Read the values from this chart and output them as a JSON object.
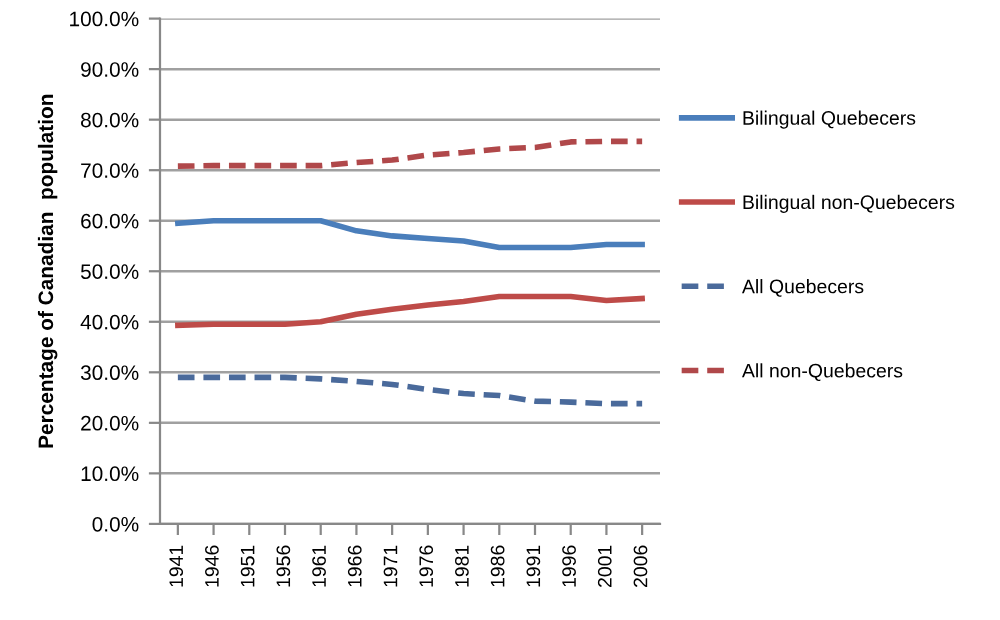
{
  "chart_data": {
    "type": "line",
    "ylabel": "Percentage of Canadian  population",
    "categories": [
      "1941",
      "1946",
      "1951",
      "1956",
      "1961",
      "1966",
      "1971",
      "1976",
      "1981",
      "1986",
      "1991",
      "1996",
      "2001",
      "2006"
    ],
    "series": [
      {
        "name": "Bilingual Quebecers",
        "color": "#4a7ebb",
        "line_style": "solid",
        "values": [
          59.5,
          60,
          60,
          60,
          60,
          58,
          57,
          56.5,
          56,
          54.7,
          54.7,
          54.7,
          55.3,
          55.3
        ]
      },
      {
        "name": "Bilingual non-Quebecers",
        "color": "#be4b48",
        "line_style": "solid",
        "values": [
          39.3,
          39.5,
          39.5,
          39.5,
          40,
          41.5,
          42.5,
          43.3,
          44,
          45,
          45,
          45,
          44.2,
          44.6
        ]
      },
      {
        "name": "All Quebecers",
        "color": "#4a6a9b",
        "line_style": "dashed",
        "values": [
          29,
          29,
          29,
          29,
          28.7,
          28.2,
          27.6,
          26.6,
          25.8,
          25.4,
          24.3,
          24.1,
          23.8,
          23.8
        ]
      },
      {
        "name": "All non-Quebecers",
        "color": "#b0484a",
        "line_style": "dashed",
        "values": [
          70.8,
          70.9,
          70.9,
          70.9,
          70.9,
          71.5,
          72,
          73,
          73.5,
          74.2,
          74.5,
          75.6,
          75.7,
          75.7
        ]
      }
    ],
    "ylim": [
      0,
      100
    ],
    "yticks": [
      {
        "value": 0,
        "label": "0.0%"
      },
      {
        "value": 10,
        "label": "10.0%"
      },
      {
        "value": 20,
        "label": "20.0%"
      },
      {
        "value": 30,
        "label": "30.0%"
      },
      {
        "value": 40,
        "label": "40.0%"
      },
      {
        "value": 50,
        "label": "50.0%"
      },
      {
        "value": 60,
        "label": "60.0%"
      },
      {
        "value": 70,
        "label": "70.0%"
      },
      {
        "value": 80,
        "label": "80.0%"
      },
      {
        "value": 90,
        "label": "90.0%"
      },
      {
        "value": 100,
        "label": "100.0%"
      }
    ],
    "grid": "y",
    "legend": "right",
    "marker": "none"
  }
}
